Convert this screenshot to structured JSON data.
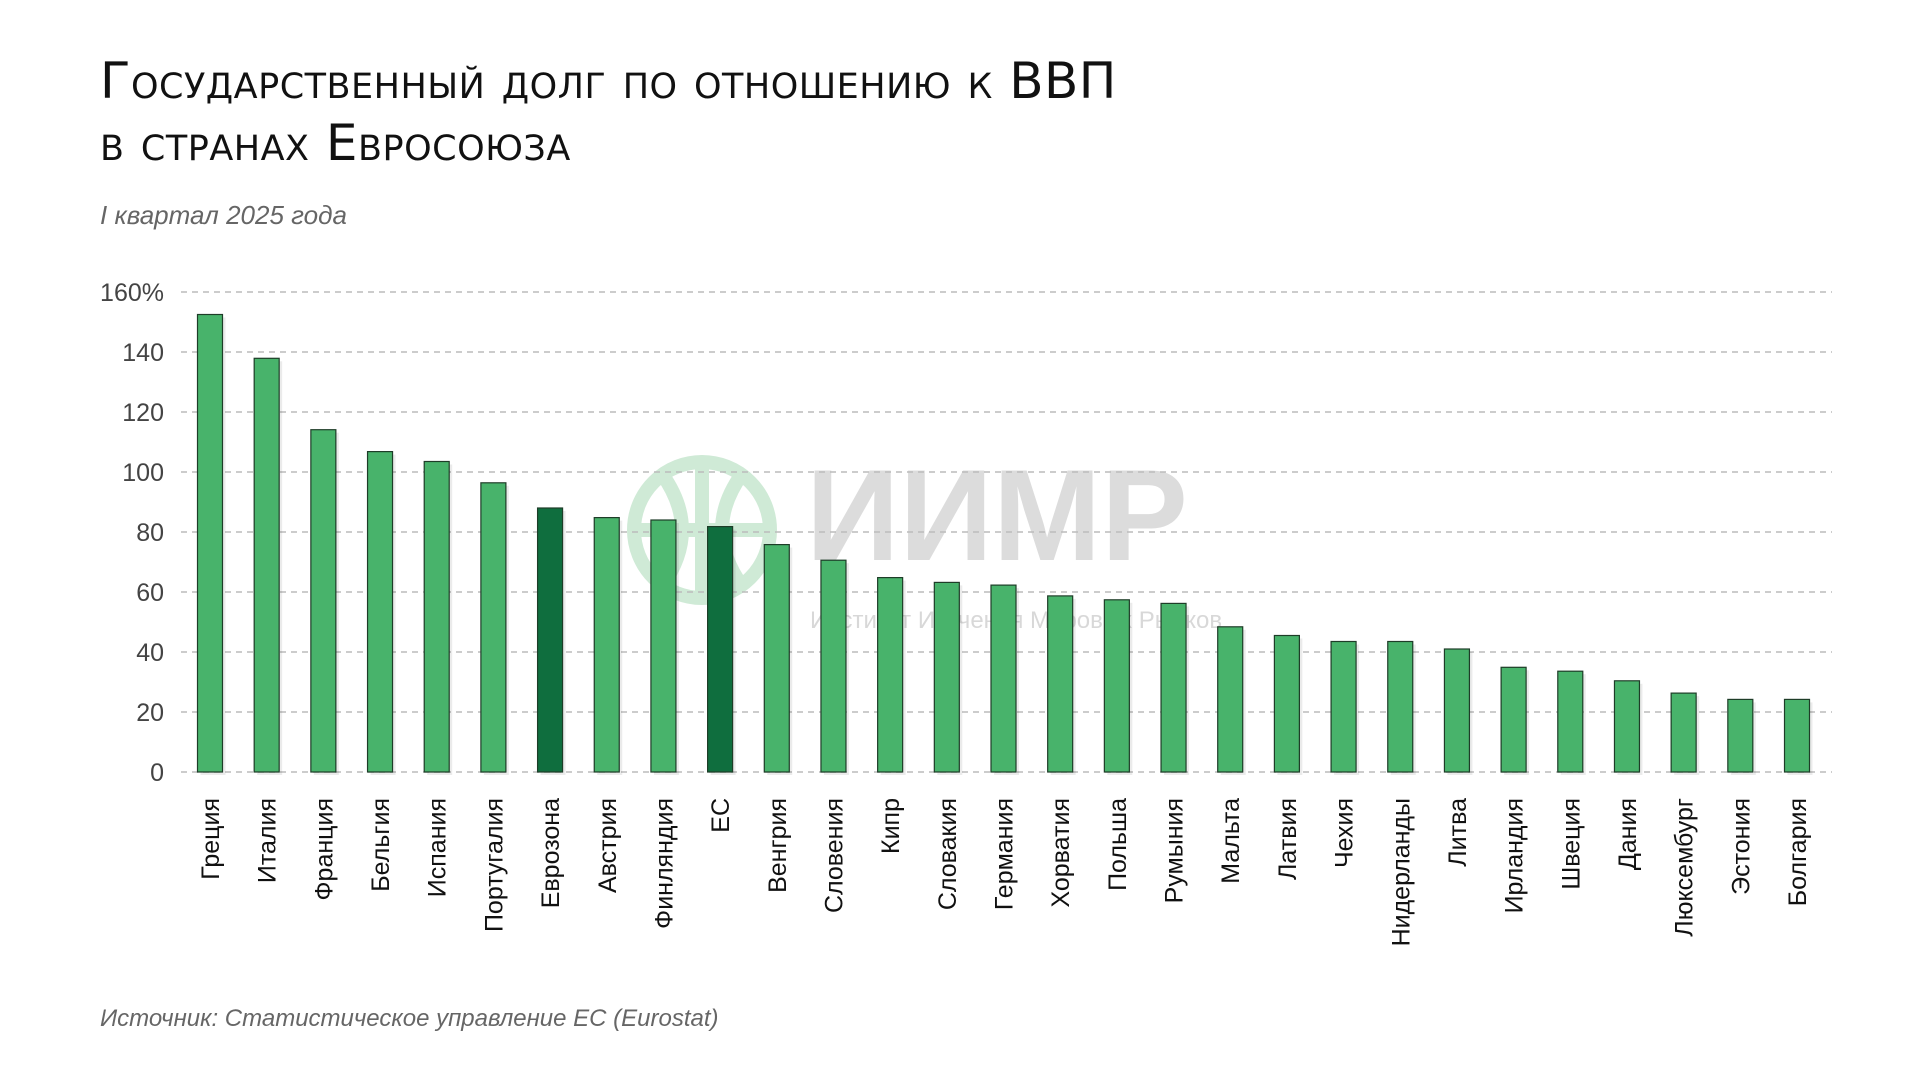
{
  "title_line1": "Государственный долг по отношению к ВВП",
  "title_line2": "в странах Евросоюза",
  "subtitle": "I квартал 2025 года",
  "source": "Источник: Статистическое управление ЕС (Eurostat)",
  "watermark": {
    "logo": "ИИМР",
    "text": "Институт Изучения Мировых Рынков"
  },
  "colors": {
    "bar": "#48b36b",
    "highlight": "#0f6e3e",
    "grid": "#bbbbbb"
  },
  "chart_data": {
    "type": "bar",
    "title": "Государственный долг по отношению к ВВП в странах Евросоюза",
    "subtitle": "I квартал 2025 года",
    "xlabel": "",
    "ylabel": "",
    "ylim": [
      0,
      160
    ],
    "yticks": [
      "0",
      "20",
      "40",
      "60",
      "80",
      "100",
      "120",
      "140",
      "160%"
    ],
    "grid": true,
    "categories": [
      "Греция",
      "Италия",
      "Франция",
      "Бельгия",
      "Испания",
      "Португалия",
      "Еврозона",
      "Австрия",
      "Финляндия",
      "ЕС",
      "Венгрия",
      "Словения",
      "Кипр",
      "Словакия",
      "Германия",
      "Хорватия",
      "Польша",
      "Румыния",
      "Мальта",
      "Латвия",
      "Чехия",
      "Нидерланды",
      "Литва",
      "Ирландия",
      "Швеция",
      "Дания",
      "Люксембург",
      "Эстония",
      "Болгария"
    ],
    "values": [
      152.5,
      137.9,
      114.1,
      106.8,
      103.5,
      96.4,
      88.0,
      84.8,
      84.0,
      81.8,
      75.8,
      70.6,
      64.8,
      63.2,
      62.3,
      58.7,
      57.4,
      56.2,
      48.4,
      45.5,
      43.5,
      43.5,
      41.0,
      34.9,
      33.6,
      30.4,
      26.3,
      24.2,
      24.2
    ],
    "highlighted": [
      "Еврозона",
      "ЕС"
    ]
  }
}
